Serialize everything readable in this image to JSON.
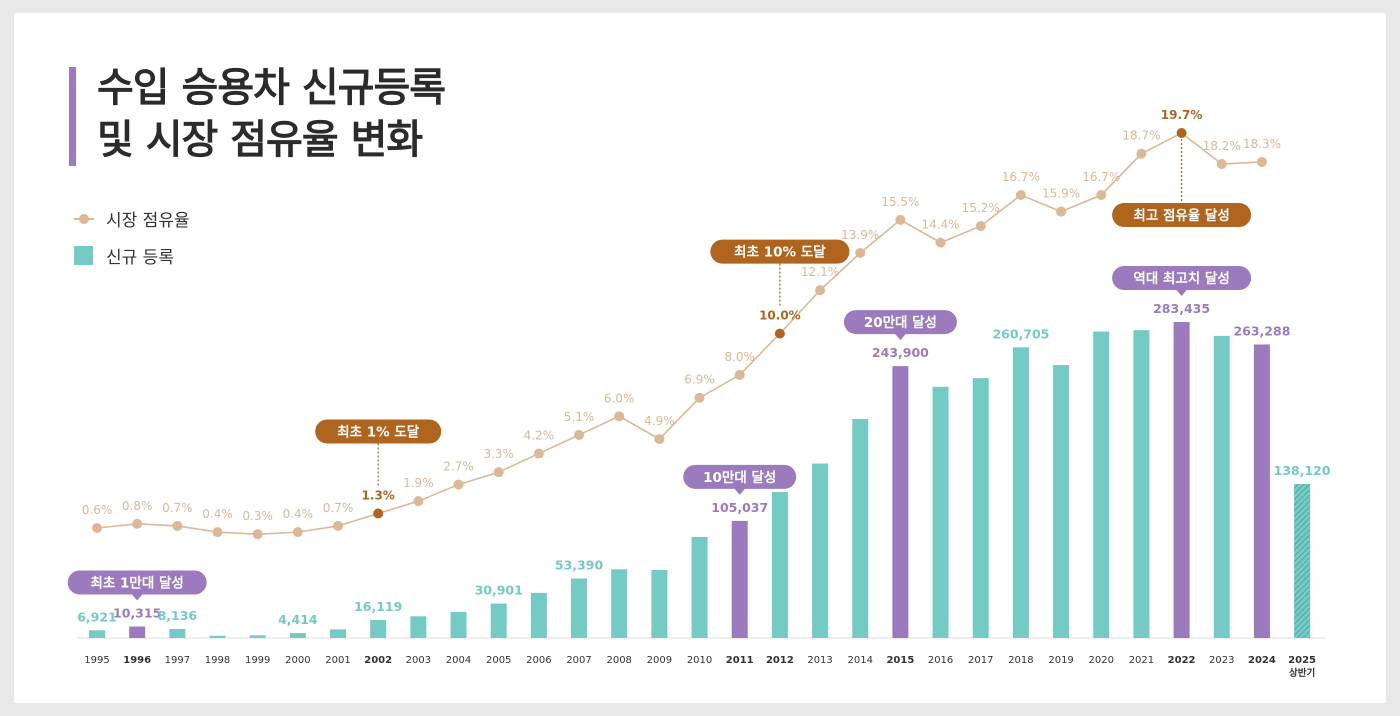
{
  "title_lines": [
    "수입 승용차 신규등록",
    "및 시장 점유율 변화"
  ],
  "legend": {
    "share": "시장 점유율",
    "registrations": "신규 등록"
  },
  "colors": {
    "bar": "#74cbc3",
    "bar_highlight": "#9b7bbd",
    "line": "#dcb896",
    "line_highlight": "#b0651f",
    "callout_brown": "#b0651f",
    "callout_purple": "#9b7bbd"
  },
  "chart_data": {
    "type": "bar+line",
    "categories": [
      "1995",
      "1996",
      "1997",
      "1998",
      "1999",
      "2000",
      "2001",
      "2002",
      "2003",
      "2004",
      "2005",
      "2006",
      "2007",
      "2008",
      "2009",
      "2010",
      "2011",
      "2012",
      "2013",
      "2014",
      "2015",
      "2016",
      "2017",
      "2018",
      "2019",
      "2020",
      "2021",
      "2022",
      "2023",
      "2024",
      "2025"
    ],
    "category_sublabels": {
      "2025": "상반기"
    },
    "bold_categories": [
      "1996",
      "2002",
      "2011",
      "2012",
      "2015",
      "2022",
      "2024",
      "2025"
    ],
    "series": [
      {
        "name": "신규 등록",
        "type": "bar",
        "values": [
          6921,
          10315,
          8136,
          2000,
          2400,
          4414,
          7750,
          16119,
          19500,
          23300,
          30901,
          40500,
          53390,
          61600,
          61000,
          90600,
          105037,
          130900,
          156500,
          196400,
          243900,
          225300,
          233100,
          260705,
          244800,
          274900,
          276100,
          283435,
          271000,
          263288,
          138120
        ],
        "labeled": [
          "1995",
          "1996",
          "1997",
          "2000",
          "2002",
          "2005",
          "2007",
          "2011",
          "2015",
          "2018",
          "2022",
          "2024",
          "2025"
        ],
        "highlighted": [
          "1996",
          "2011",
          "2015",
          "2022",
          "2024"
        ],
        "hatched": [
          "2025"
        ]
      },
      {
        "name": "시장 점유율",
        "type": "line",
        "unit": "%",
        "values": [
          0.6,
          0.8,
          0.7,
          0.4,
          0.3,
          0.4,
          0.7,
          1.3,
          1.9,
          2.7,
          3.3,
          4.2,
          5.1,
          6.0,
          4.9,
          6.9,
          8.0,
          10.0,
          12.1,
          13.9,
          15.5,
          14.4,
          15.2,
          16.7,
          15.9,
          16.7,
          18.7,
          19.7,
          18.2,
          18.3,
          null
        ],
        "highlighted": [
          "2002",
          "2012",
          "2022"
        ]
      }
    ],
    "annotations": [
      {
        "text": "최초 1만대 달성",
        "category": "1996",
        "target": "bar",
        "color": "purple"
      },
      {
        "text": "최초 1% 도달",
        "category": "2002",
        "target": "line",
        "color": "brown"
      },
      {
        "text": "10만대 달성",
        "category": "2011",
        "target": "bar",
        "color": "purple"
      },
      {
        "text": "최초 10% 도달",
        "category": "2012",
        "target": "line",
        "color": "brown"
      },
      {
        "text": "20만대 달성",
        "category": "2015",
        "target": "bar",
        "color": "purple"
      },
      {
        "text": "역대 최고치 달성",
        "category": "2022",
        "target": "bar",
        "color": "purple"
      },
      {
        "text": "최고 점유율 달성",
        "category": "2022",
        "target": "line",
        "color": "brown"
      }
    ],
    "ylim_bar": [
      0,
      283435
    ],
    "grid": false,
    "legend_position": "top-left"
  }
}
